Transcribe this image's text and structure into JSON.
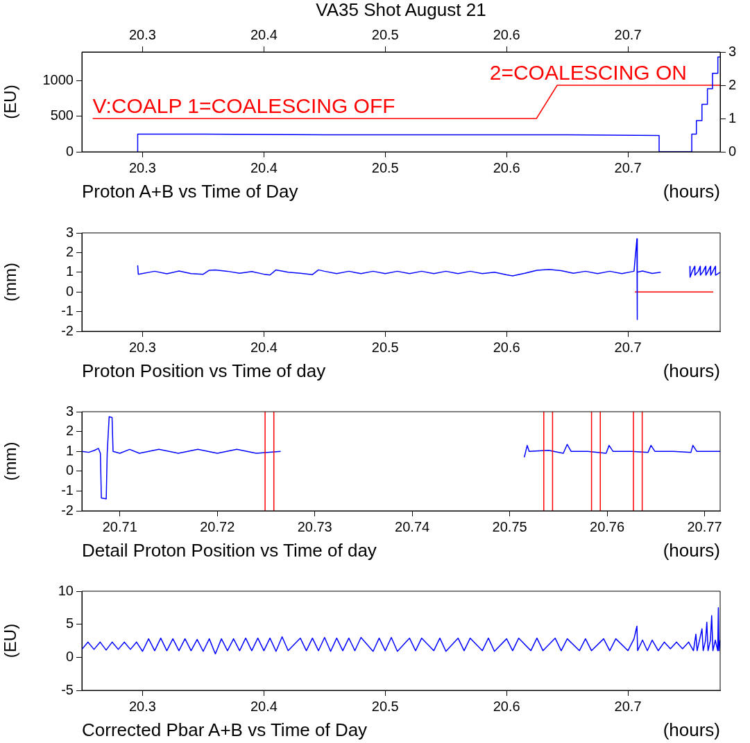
{
  "chart_data": [
    {
      "type": "line",
      "title": "VA35 Shot August 21",
      "subtitle": "Proton A+B vs Time of Day",
      "xlabel": "(hours)",
      "ylabel": "(EU)",
      "xlim": [
        20.25,
        20.776
      ],
      "xticks": [
        20.3,
        20.4,
        20.5,
        20.6,
        20.7
      ],
      "x2lim": [
        20.25,
        20.776
      ],
      "x2ticks": [
        20.3,
        20.4,
        20.5,
        20.6,
        20.7
      ],
      "ylim": [
        0,
        1410
      ],
      "yticks": [
        0,
        500,
        1000
      ],
      "y2lim": [
        0,
        3
      ],
      "y2ticks": [
        0,
        1,
        2,
        3
      ],
      "grid": false,
      "legend": false,
      "annotations": [
        "V:COALP 1=COALESCING OFF",
        "2=COALESCING ON"
      ],
      "series": [
        {
          "color": "#0000ff",
          "x": [
            20.296,
            20.296,
            20.35,
            20.45,
            20.55,
            20.65,
            20.7257,
            20.7257,
            20.7526,
            20.7526,
            20.7564,
            20.7564,
            20.761,
            20.761,
            20.7655,
            20.7655,
            20.7697,
            20.7697,
            20.7741,
            20.7741,
            20.776
          ],
          "values": [
            0,
            250,
            250,
            240,
            240,
            240,
            230,
            0,
            0,
            250,
            250,
            440,
            440,
            670,
            670,
            890,
            890,
            1110,
            1110,
            1340,
            1340
          ]
        },
        {
          "color": "#ff0000",
          "axis": "y2",
          "x": [
            20.2589,
            20.6246,
            20.6417,
            20.776
          ],
          "values": [
            1,
            1,
            2,
            2
          ]
        }
      ]
    },
    {
      "type": "line",
      "title": "Proton Position vs Time of day",
      "xlabel": "(hours)",
      "ylabel": "(mm)",
      "xlim": [
        20.25,
        20.776
      ],
      "xticks": [
        20.3,
        20.4,
        20.5,
        20.6,
        20.7
      ],
      "ylim": [
        -2,
        3
      ],
      "yticks": [
        -2,
        -1,
        0,
        1,
        2,
        3
      ],
      "grid": false,
      "legend": false,
      "series": [
        {
          "color": "#0000ff",
          "x": [
            20.296,
            20.2965,
            20.31,
            20.32,
            20.33,
            20.34,
            20.35,
            20.355,
            20.36,
            20.37,
            20.38,
            20.39,
            20.4,
            20.405,
            20.41,
            20.42,
            20.43,
            20.44,
            20.445,
            20.45,
            20.46,
            20.47,
            20.48,
            20.49,
            20.5,
            20.51,
            20.52,
            20.53,
            20.54,
            20.55,
            20.56,
            20.57,
            20.58,
            20.59,
            20.6,
            20.605,
            20.615,
            20.625,
            20.635,
            20.645,
            20.655,
            20.665,
            20.675,
            20.685,
            20.695,
            20.705,
            20.7074,
            20.7076,
            20.7078,
            20.712,
            20.72,
            20.727,
            20.74,
            20.751,
            20.7512,
            20.753,
            20.755,
            20.7552,
            20.758,
            20.7595,
            20.7597,
            20.762,
            20.764,
            20.7642,
            20.766,
            20.768,
            20.7682,
            20.77,
            20.772,
            20.7722,
            20.776
          ],
          "values": [
            1.35,
            0.9,
            1.05,
            0.92,
            1.06,
            0.93,
            0.9,
            1.1,
            1.12,
            1.05,
            0.95,
            1.04,
            0.9,
            0.86,
            1.12,
            1.0,
            0.95,
            0.88,
            1.12,
            1.05,
            0.93,
            1.05,
            0.93,
            1.05,
            0.93,
            1.05,
            0.93,
            1.05,
            0.93,
            1.05,
            0.93,
            1.05,
            0.93,
            1.0,
            0.87,
            0.82,
            0.95,
            1.1,
            1.14,
            1.08,
            0.95,
            1.05,
            0.93,
            1.05,
            0.93,
            1.05,
            2.7,
            -1.4,
            1.0,
            1.06,
            0.94,
            1.0,
            null,
            1.3,
            0.75,
            1.05,
            1.3,
            0.85,
            1.05,
            1.3,
            0.85,
            1.05,
            1.3,
            0.85,
            1.05,
            1.3,
            0.85,
            1.05,
            1.3,
            0.85,
            1.0
          ]
        },
        {
          "color": "#ff0000",
          "x": [
            20.7057,
            20.7703
          ],
          "values": [
            0,
            0
          ]
        }
      ]
    },
    {
      "type": "line",
      "title": "Detail Proton Position vs Time of day",
      "xlabel": "(hours)",
      "ylabel": "(mm)",
      "xlim": [
        20.7061,
        20.7716
      ],
      "xticks": [
        20.71,
        20.72,
        20.73,
        20.74,
        20.75,
        20.76,
        20.77
      ],
      "ylim": [
        -2,
        3
      ],
      "yticks": [
        -2,
        -1,
        0,
        1,
        2,
        3
      ],
      "grid": false,
      "legend": false,
      "ref_lines": [
        {
          "axis": "x",
          "value": 20.7249,
          "color": "#ff0000"
        },
        {
          "axis": "x",
          "value": 20.7258,
          "color": "#ff0000"
        },
        {
          "axis": "x",
          "value": 20.7535,
          "color": "#ff0000"
        },
        {
          "axis": "x",
          "value": 20.7544,
          "color": "#ff0000"
        },
        {
          "axis": "x",
          "value": 20.7584,
          "color": "#ff0000"
        },
        {
          "axis": "x",
          "value": 20.7593,
          "color": "#ff0000"
        },
        {
          "axis": "x",
          "value": 20.7627,
          "color": "#ff0000"
        },
        {
          "axis": "x",
          "value": 20.7636,
          "color": "#ff0000"
        }
      ],
      "series": [
        {
          "color": "#0000ff",
          "x": [
            20.7061,
            20.7068,
            20.7074,
            20.7078,
            20.708,
            20.7081,
            20.7086,
            20.7087,
            20.7089,
            20.7092,
            20.7093,
            20.71,
            20.711,
            20.712,
            20.714,
            20.716,
            20.718,
            20.72,
            20.722,
            20.724,
            20.7265,
            20.74,
            20.7515,
            20.7518,
            20.752,
            20.754,
            20.7555,
            20.7559,
            20.7563,
            20.758,
            20.7599,
            20.7602,
            20.7606,
            20.7625,
            20.7642,
            20.7645,
            20.7649,
            20.7668,
            20.7686,
            20.7688,
            20.7692,
            20.7716
          ],
          "values": [
            1.0,
            0.95,
            1.05,
            1.15,
            0.9,
            -1.35,
            -1.4,
            0.9,
            2.75,
            2.7,
            1.0,
            0.9,
            1.1,
            0.9,
            1.1,
            0.9,
            1.1,
            0.9,
            1.1,
            0.9,
            1.0,
            null,
            0.7,
            1.3,
            1.0,
            1.05,
            0.9,
            1.35,
            1.0,
            1.0,
            0.9,
            1.3,
            1.0,
            1.0,
            0.95,
            1.3,
            1.0,
            1.0,
            0.95,
            1.3,
            1.0,
            1.0
          ]
        }
      ]
    },
    {
      "type": "line",
      "title": "Corrected Pbar A+B vs Time of Day",
      "xlabel": "(hours)",
      "ylabel": "(EU)",
      "xlim": [
        20.25,
        20.776
      ],
      "xticks": [
        20.3,
        20.4,
        20.5,
        20.6,
        20.7
      ],
      "ylim": [
        -5,
        10
      ],
      "yticks": [
        -5,
        0,
        5,
        10
      ],
      "grid": false,
      "legend": false,
      "series": [
        {
          "color": "#0000ff",
          "x": [
            20.25,
            20.255,
            20.26,
            20.265,
            20.27,
            20.275,
            20.28,
            20.285,
            20.29,
            20.295,
            20.3,
            20.305,
            20.31,
            20.315,
            20.32,
            20.325,
            20.33,
            20.335,
            20.34,
            20.345,
            20.35,
            20.355,
            20.36,
            20.365,
            20.37,
            20.375,
            20.38,
            20.385,
            20.39,
            20.395,
            20.4,
            20.405,
            20.41,
            20.415,
            20.42,
            20.43,
            20.435,
            20.44,
            20.445,
            20.45,
            20.455,
            20.46,
            20.465,
            20.47,
            20.475,
            20.48,
            20.49,
            20.495,
            20.5,
            20.505,
            20.51,
            20.52,
            20.525,
            20.53,
            20.54,
            20.545,
            20.55,
            20.56,
            20.565,
            20.57,
            20.58,
            20.585,
            20.59,
            20.6,
            20.605,
            20.61,
            20.62,
            20.625,
            20.63,
            20.64,
            20.645,
            20.65,
            20.66,
            20.665,
            20.67,
            20.68,
            20.685,
            20.69,
            20.7,
            20.705,
            20.7074,
            20.708,
            20.712,
            20.716,
            20.72,
            20.725,
            20.73,
            20.735,
            20.74,
            20.745,
            20.75,
            20.754,
            20.756,
            20.757,
            20.759,
            20.761,
            20.762,
            20.764,
            20.765,
            20.766,
            20.768,
            20.769,
            20.77,
            20.772,
            20.774,
            20.7745,
            20.775,
            20.776
          ],
          "values": [
            1.2,
            2.3,
            1.2,
            2.3,
            1.1,
            2.3,
            1.2,
            2.3,
            1.2,
            2.3,
            0.9,
            2.8,
            1.0,
            2.9,
            1.0,
            2.8,
            1.0,
            2.8,
            1.0,
            2.7,
            0.9,
            2.8,
            0.5,
            2.8,
            1.0,
            2.8,
            1.0,
            2.9,
            1.0,
            2.9,
            1.0,
            2.9,
            0.9,
            3.1,
            1.0,
            2.9,
            1.0,
            2.9,
            1.0,
            3.0,
            0.9,
            2.9,
            1.0,
            2.9,
            1.0,
            3.0,
            0.9,
            2.9,
            1.0,
            3.0,
            0.9,
            2.9,
            1.0,
            2.9,
            1.0,
            2.9,
            0.9,
            2.9,
            1.0,
            2.9,
            1.0,
            2.9,
            0.9,
            2.8,
            1.0,
            2.9,
            1.0,
            2.9,
            1.0,
            2.9,
            1.0,
            2.8,
            1.0,
            2.8,
            1.0,
            2.8,
            1.0,
            2.8,
            1.0,
            2.8,
            4.7,
            1.0,
            2.6,
            1.0,
            2.6,
            1.0,
            2.3,
            1.3,
            2.3,
            1.3,
            2.3,
            1.0,
            3.5,
            1.0,
            2.6,
            4.3,
            1.0,
            2.6,
            5.3,
            1.0,
            2.6,
            6.3,
            1.0,
            2.6,
            1.0,
            7.5,
            1.0,
            2.6
          ]
        }
      ]
    }
  ]
}
